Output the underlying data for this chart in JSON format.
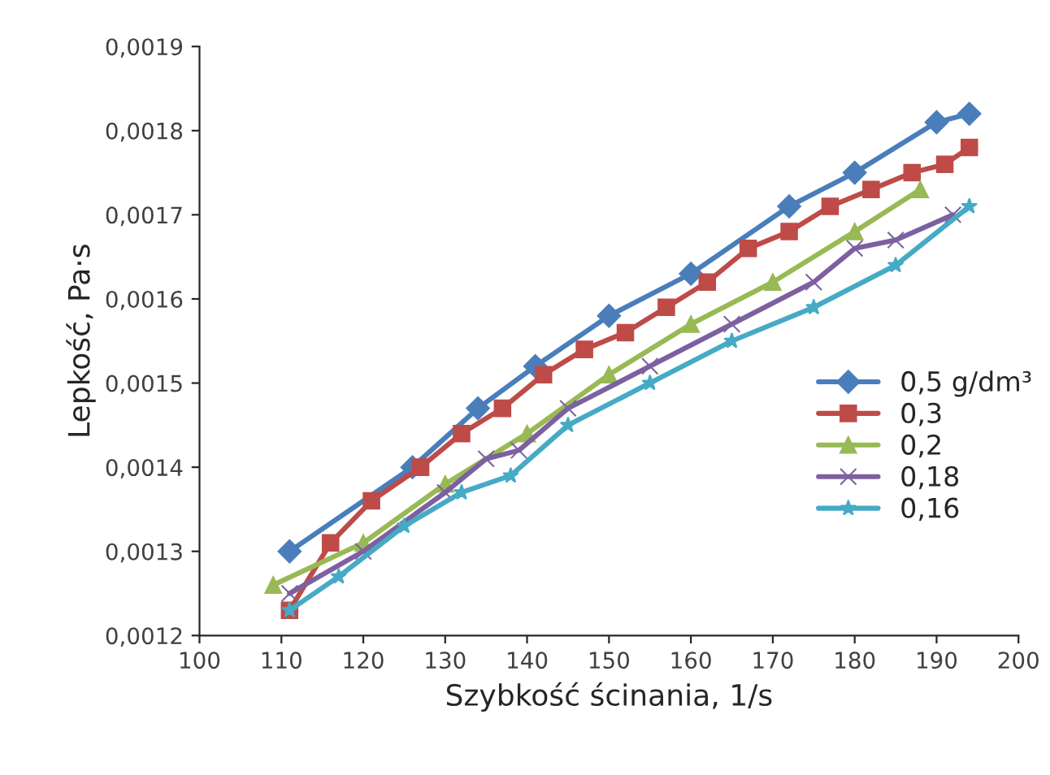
{
  "chart_data": {
    "type": "line",
    "xlabel": "Szybkość ścinania, 1/s",
    "ylabel": "Lepkość, Pa·s",
    "xlim": [
      100,
      200
    ],
    "xticks": [
      100,
      110,
      120,
      130,
      140,
      150,
      160,
      170,
      180,
      190,
      200
    ],
    "ylim": [
      0.0012,
      0.0019
    ],
    "yticks": [
      {
        "value": 0.0012,
        "label": "0,0012"
      },
      {
        "value": 0.0013,
        "label": "0,0013"
      },
      {
        "value": 0.0014,
        "label": "0,0014"
      },
      {
        "value": 0.0015,
        "label": "0,0015"
      },
      {
        "value": 0.0016,
        "label": "0,0016"
      },
      {
        "value": 0.0017,
        "label": "0,0017"
      },
      {
        "value": 0.0018,
        "label": "0,0018"
      },
      {
        "value": 0.0019,
        "label": "0,0019"
      }
    ],
    "grid": false,
    "legend": "right",
    "line_style": "solid",
    "series": [
      {
        "name": "0,5 g/dm³",
        "color": "#4a7ebb",
        "marker": "diamond",
        "x": [
          111,
          126,
          134,
          141,
          150,
          160,
          172,
          180,
          190,
          194
        ],
        "values": [
          0.0013,
          0.0014,
          0.00147,
          0.00152,
          0.00158,
          0.00163,
          0.00171,
          0.00175,
          0.00181,
          0.00182
        ]
      },
      {
        "name": "0,3",
        "color": "#be4b48",
        "marker": "square",
        "x": [
          111,
          116,
          121,
          127,
          132,
          137,
          142,
          147,
          152,
          157,
          162,
          167,
          172,
          177,
          182,
          187,
          191,
          194
        ],
        "values": [
          0.00123,
          0.00131,
          0.00136,
          0.0014,
          0.00144,
          0.00147,
          0.00151,
          0.00154,
          0.00156,
          0.00159,
          0.00162,
          0.00166,
          0.00168,
          0.00171,
          0.00173,
          0.00175,
          0.00176,
          0.00178
        ]
      },
      {
        "name": "0,2",
        "color": "#98b954",
        "marker": "triangle",
        "x": [
          109,
          120,
          130,
          140,
          150,
          160,
          170,
          180,
          188
        ],
        "values": [
          0.00126,
          0.00131,
          0.00138,
          0.00144,
          0.00151,
          0.00157,
          0.00162,
          0.00168,
          0.00173
        ]
      },
      {
        "name": "0,18",
        "color": "#7d60a0",
        "marker": "cross",
        "x": [
          111,
          120,
          130,
          135,
          139,
          145,
          155,
          165,
          175,
          180,
          185,
          192
        ],
        "values": [
          0.00125,
          0.0013,
          0.00137,
          0.00141,
          0.00142,
          0.00147,
          0.00152,
          0.00157,
          0.00162,
          0.00166,
          0.00167,
          0.0017
        ]
      },
      {
        "name": "0,16",
        "color": "#46aac5",
        "marker": "star",
        "x": [
          111,
          117,
          125,
          132,
          138,
          145,
          155,
          165,
          175,
          185,
          194
        ],
        "values": [
          0.00123,
          0.00127,
          0.00133,
          0.00137,
          0.00139,
          0.00145,
          0.0015,
          0.00155,
          0.00159,
          0.00164,
          0.00171
        ]
      }
    ]
  }
}
